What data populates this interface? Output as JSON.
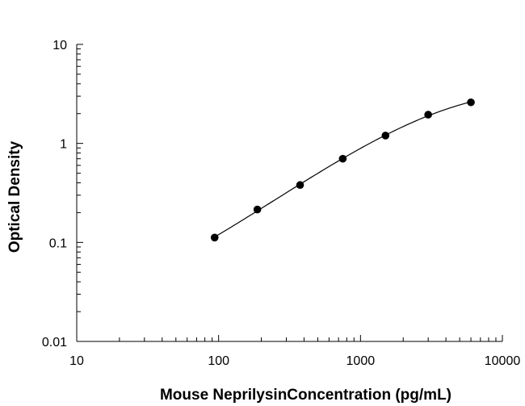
{
  "chart_data": {
    "type": "scatter",
    "xlabel": "Mouse NeprilysinConcentration (pg/mL)",
    "ylabel": "Optical Density",
    "x_scale": "log",
    "y_scale": "log",
    "xlim": [
      10,
      10000
    ],
    "ylim": [
      0.01,
      10
    ],
    "x_ticks": [
      "10",
      "100",
      "1000",
      "10000"
    ],
    "y_ticks": [
      "0.01",
      "0.1",
      "1",
      "10"
    ],
    "grid": false,
    "points": {
      "x": [
        93.75,
        187.5,
        375,
        750,
        1500,
        3000,
        6000
      ],
      "y": [
        0.112,
        0.215,
        0.38,
        0.7,
        1.2,
        1.95,
        2.6
      ]
    },
    "fit_curve": true,
    "marker_color": "#000000",
    "line_color": "#000000"
  }
}
